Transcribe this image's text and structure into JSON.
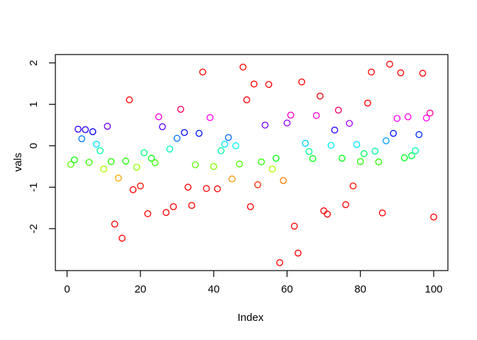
{
  "figure": {
    "background": "#ffffff",
    "box_color": "#000000",
    "text_color": "#000000"
  },
  "chart_data": {
    "type": "scatter",
    "title": "",
    "xlabel": "Index",
    "ylabel": "vals",
    "legend": "none",
    "grid": false,
    "marker": "open-circle",
    "x_ticks": [
      0,
      20,
      40,
      60,
      80,
      100
    ],
    "y_ticks": [
      -2,
      -1,
      0,
      1,
      2
    ],
    "xlim": [
      -3,
      104
    ],
    "ylim": [
      -3.0,
      2.2
    ],
    "color_rule": {
      "type": "hsv-by-value",
      "description": "hue = clamp((value+1)/2, 0, 1) mapped 0..360deg, full saturation; both extremes render red",
      "hue_offset": 1,
      "hue_scale": 2
    },
    "points": [
      [
        1,
        -0.45
      ],
      [
        2,
        -0.34
      ],
      [
        3,
        0.4
      ],
      [
        4,
        0.17
      ],
      [
        5,
        0.39
      ],
      [
        6,
        -0.4
      ],
      [
        7,
        0.34
      ],
      [
        8,
        0.04
      ],
      [
        9,
        -0.12
      ],
      [
        10,
        -0.56
      ],
      [
        11,
        0.47
      ],
      [
        12,
        -0.38
      ],
      [
        13,
        -1.89
      ],
      [
        14,
        -0.78
      ],
      [
        15,
        -2.23
      ],
      [
        16,
        -0.37
      ],
      [
        17,
        1.11
      ],
      [
        18,
        -1.06
      ],
      [
        19,
        -0.52
      ],
      [
        20,
        -0.97
      ],
      [
        21,
        -0.17
      ],
      [
        22,
        -1.64
      ],
      [
        23,
        -0.3
      ],
      [
        24,
        -0.41
      ],
      [
        25,
        0.7
      ],
      [
        26,
        0.46
      ],
      [
        27,
        -1.61
      ],
      [
        28,
        -0.08
      ],
      [
        29,
        -1.47
      ],
      [
        30,
        0.18
      ],
      [
        31,
        0.88
      ],
      [
        32,
        0.32
      ],
      [
        33,
        -1.0
      ],
      [
        34,
        -1.44
      ],
      [
        35,
        -0.46
      ],
      [
        36,
        0.3
      ],
      [
        37,
        1.78
      ],
      [
        38,
        -1.03
      ],
      [
        39,
        0.68
      ],
      [
        40,
        -0.5
      ],
      [
        41,
        -1.04
      ],
      [
        42,
        -0.12
      ],
      [
        43,
        0.04
      ],
      [
        44,
        0.2
      ],
      [
        45,
        -0.8
      ],
      [
        46,
        0.0
      ],
      [
        47,
        -0.44
      ],
      [
        48,
        1.9
      ],
      [
        49,
        1.11
      ],
      [
        50,
        -1.47
      ],
      [
        51,
        1.49
      ],
      [
        52,
        -0.94
      ],
      [
        53,
        -0.39
      ],
      [
        54,
        0.5
      ],
      [
        55,
        1.48
      ],
      [
        56,
        -0.56
      ],
      [
        57,
        -0.3
      ],
      [
        58,
        -2.82
      ],
      [
        59,
        -0.84
      ],
      [
        60,
        0.55
      ],
      [
        61,
        0.74
      ],
      [
        62,
        -1.94
      ],
      [
        63,
        -2.59
      ],
      [
        64,
        1.54
      ],
      [
        65,
        0.06
      ],
      [
        66,
        -0.14
      ],
      [
        67,
        -0.31
      ],
      [
        68,
        0.73
      ],
      [
        69,
        1.2
      ],
      [
        70,
        -1.57
      ],
      [
        71,
        -1.65
      ],
      [
        72,
        0.01
      ],
      [
        73,
        0.38
      ],
      [
        74,
        0.86
      ],
      [
        75,
        -0.3
      ],
      [
        76,
        -1.42
      ],
      [
        77,
        0.54
      ],
      [
        78,
        -0.97
      ],
      [
        79,
        0.03
      ],
      [
        80,
        -0.38
      ],
      [
        81,
        -0.19
      ],
      [
        82,
        1.03
      ],
      [
        83,
        1.78
      ],
      [
        84,
        -0.13
      ],
      [
        85,
        -0.39
      ],
      [
        86,
        -1.62
      ],
      [
        87,
        0.12
      ],
      [
        88,
        1.97
      ],
      [
        89,
        0.3
      ],
      [
        90,
        0.66
      ],
      [
        91,
        1.76
      ],
      [
        92,
        -0.29
      ],
      [
        93,
        0.7
      ],
      [
        94,
        -0.24
      ],
      [
        95,
        -0.12
      ],
      [
        96,
        0.27
      ],
      [
        97,
        1.75
      ],
      [
        98,
        0.67
      ],
      [
        99,
        0.79
      ],
      [
        100,
        -1.72
      ]
    ]
  }
}
